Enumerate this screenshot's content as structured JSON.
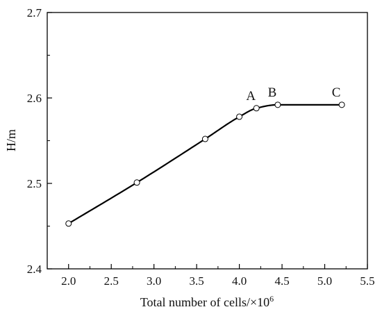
{
  "chart_data": {
    "type": "line",
    "title": "",
    "xlabel": "Total number of cells/×10",
    "xlabel_superscript": "6",
    "ylabel": "H/m",
    "xlim": [
      1.75,
      5.5
    ],
    "ylim": [
      2.4,
      2.7
    ],
    "xticks": [
      "2.0",
      "2.5",
      "3.0",
      "3.5",
      "4.0",
      "4.5",
      "5.0",
      "5.5"
    ],
    "yticks": [
      "2.4",
      "2.5",
      "2.6",
      "2.7"
    ],
    "grid": false,
    "legend": "none",
    "line_color": "#000000",
    "marker": "open-circle",
    "series": [
      {
        "x": [
          2.0,
          2.8,
          3.6,
          4.0,
          4.2,
          4.45,
          5.2
        ],
        "y": [
          2.453,
          2.501,
          2.552,
          2.578,
          2.588,
          2.592,
          2.592
        ]
      }
    ],
    "point_labels": [
      {
        "text": "A",
        "x": 4.2,
        "y": 2.588
      },
      {
        "text": "B",
        "x": 4.45,
        "y": 2.592
      },
      {
        "text": "C",
        "x": 5.2,
        "y": 2.592
      }
    ]
  }
}
